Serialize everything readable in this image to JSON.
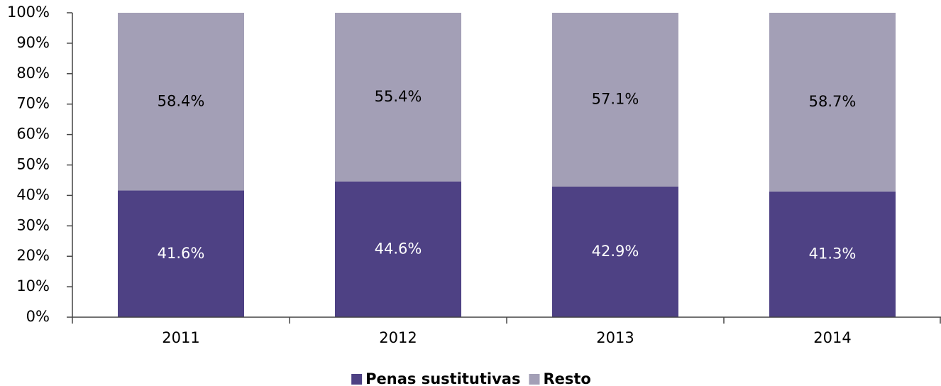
{
  "chart_data": {
    "type": "stacked_bar",
    "categories": [
      "2011",
      "2012",
      "2013",
      "2014"
    ],
    "series": [
      {
        "name": "Penas sustitutivas",
        "color": "#4e4184",
        "values": [
          41.6,
          44.6,
          42.9,
          41.3
        ],
        "value_labels": [
          "41.6%",
          "44.6%",
          "42.9%",
          "41.3%"
        ]
      },
      {
        "name": "Resto",
        "color": "#a39fb6",
        "values": [
          58.4,
          55.4,
          57.1,
          58.7
        ],
        "value_labels": [
          "58.4%",
          "55.4%",
          "57.1%",
          "58.7%"
        ]
      }
    ],
    "ylim": [
      0,
      100
    ],
    "yticks": [
      {
        "value": 0,
        "label": "0%"
      },
      {
        "value": 10,
        "label": "10%"
      },
      {
        "value": 20,
        "label": "20%"
      },
      {
        "value": 30,
        "label": "30%"
      },
      {
        "value": 40,
        "label": "40%"
      },
      {
        "value": 50,
        "label": "50%"
      },
      {
        "value": 60,
        "label": "60%"
      },
      {
        "value": 70,
        "label": "70%"
      },
      {
        "value": 80,
        "label": "80%"
      },
      {
        "value": 90,
        "label": "90%"
      },
      {
        "value": 100,
        "label": "100%"
      }
    ],
    "legend": "bottom"
  }
}
